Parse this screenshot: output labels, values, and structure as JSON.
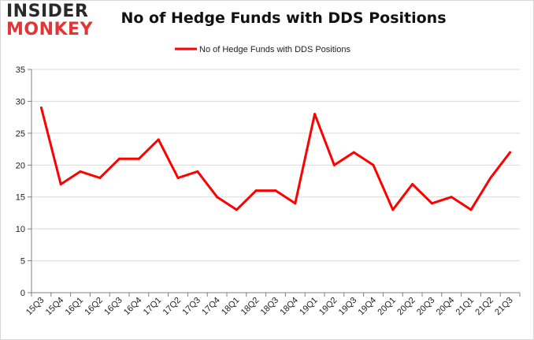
{
  "logo": {
    "line1": "INSIDER",
    "line2": "MONKEY"
  },
  "colors": {
    "series": "#ff0000",
    "grid": "#d9d9d9",
    "axis": "#808080"
  },
  "chart_data": {
    "type": "line",
    "title": "No of Hedge Funds with DDS Positions",
    "xlabel": "",
    "ylabel": "",
    "ylim": [
      0,
      35
    ],
    "yticks": [
      0,
      5,
      10,
      15,
      20,
      25,
      30,
      35
    ],
    "grid": true,
    "legend_position": "top-center",
    "categories": [
      "15Q3",
      "15Q4",
      "16Q1",
      "16Q2",
      "16Q3",
      "16Q4",
      "17Q1",
      "17Q2",
      "17Q3",
      "17Q4",
      "18Q1",
      "18Q2",
      "18Q3",
      "18Q4",
      "19Q1",
      "19Q2",
      "19Q3",
      "19Q4",
      "20Q1",
      "20Q2",
      "20Q3",
      "20Q4",
      "21Q1",
      "21Q2",
      "21Q3"
    ],
    "series": [
      {
        "name": "No of Hedge Funds with DDS Positions",
        "values": [
          29,
          17,
          19,
          18,
          21,
          21,
          24,
          18,
          19,
          15,
          13,
          16,
          16,
          14,
          28,
          20,
          22,
          20,
          13,
          17,
          14,
          15,
          13,
          18,
          22
        ]
      }
    ]
  }
}
